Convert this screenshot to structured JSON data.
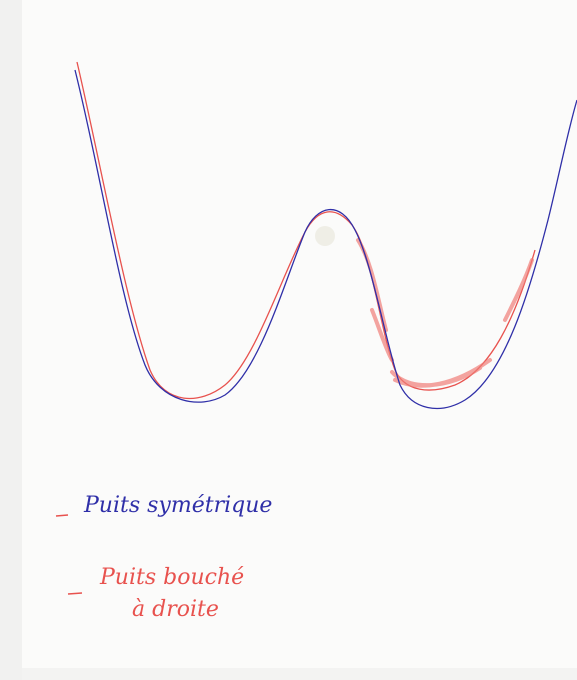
{
  "legend": [
    {
      "label": "Puits symétrique"
    },
    {
      "lines": [
        "Puits bouché",
        "à droite"
      ]
    }
  ]
}
